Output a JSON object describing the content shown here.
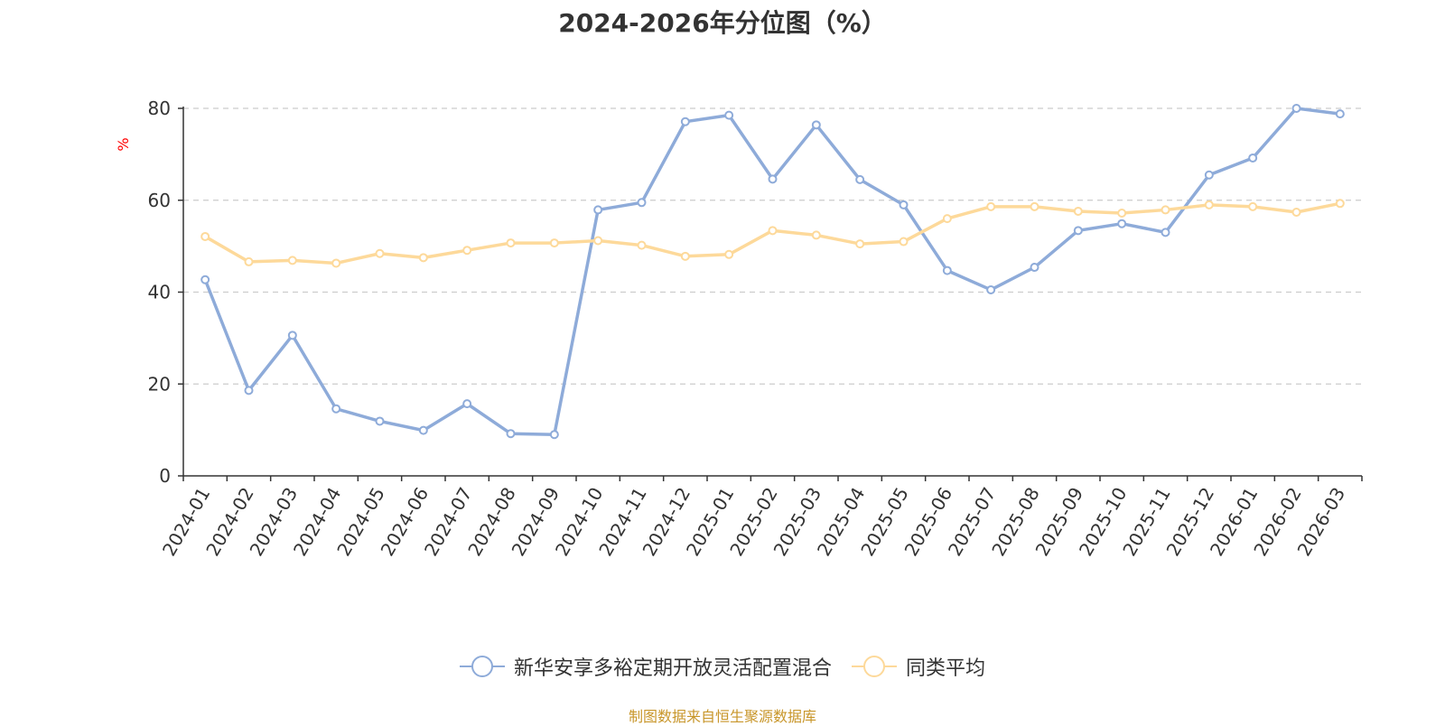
{
  "chart_data": {
    "type": "line",
    "title": "2024-2026年分位图（%）",
    "ylabel": "%",
    "xlabel": "",
    "ylim": [
      0,
      80
    ],
    "yticks": [
      0,
      20,
      40,
      60,
      80
    ],
    "grid": true,
    "legend_position": "bottom",
    "categories": [
      "2024-01",
      "2024-02",
      "2024-03",
      "2024-04",
      "2024-05",
      "2024-06",
      "2024-07",
      "2024-08",
      "2024-09",
      "2024-10",
      "2024-11",
      "2024-12",
      "2025-01",
      "2025-02",
      "2025-03",
      "2025-04",
      "2025-05",
      "2025-06",
      "2025-07",
      "2025-08",
      "2025-09",
      "2025-10",
      "2025-11",
      "2025-12",
      "2026-01",
      "2026-02",
      "2026-03"
    ],
    "series": [
      {
        "name": "新华安享多裕定期开放灵活配置混合",
        "color": "#8eabd9",
        "values": [
          42.7,
          18.6,
          30.6,
          14.6,
          11.9,
          9.9,
          15.7,
          9.2,
          9.0,
          57.9,
          59.5,
          77.1,
          78.5,
          64.6,
          76.4,
          64.5,
          59.0,
          44.7,
          40.5,
          45.4,
          53.4,
          54.9,
          53.0,
          65.5,
          69.2,
          80.0,
          78.8
        ]
      },
      {
        "name": "同类平均",
        "color": "#fdd99a",
        "values": [
          52.1,
          46.6,
          46.9,
          46.3,
          48.4,
          47.5,
          49.1,
          50.7,
          50.7,
          51.2,
          50.2,
          47.8,
          48.2,
          53.4,
          52.4,
          50.5,
          51.0,
          56.0,
          58.6,
          58.6,
          57.6,
          57.2,
          57.9,
          59.0,
          58.6,
          57.4,
          59.3
        ]
      }
    ]
  },
  "source_note": "制图数据来自恒生聚源数据库"
}
